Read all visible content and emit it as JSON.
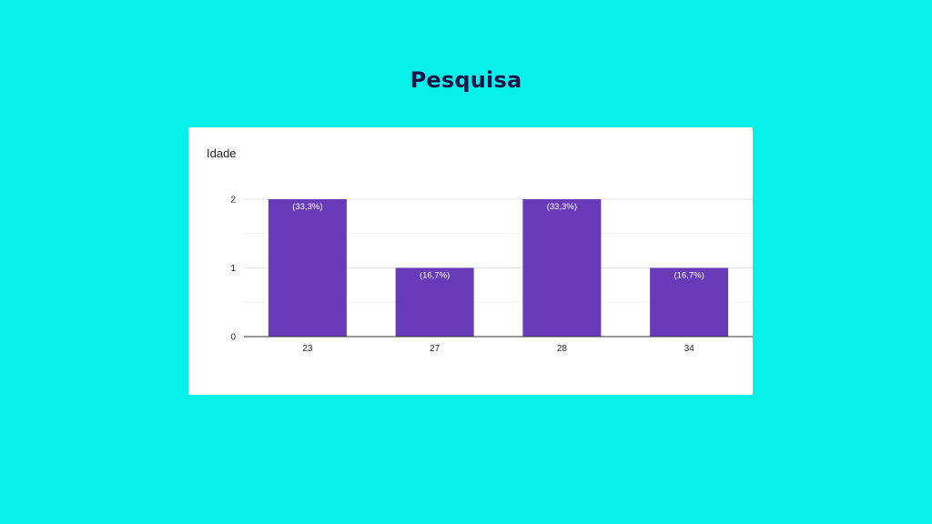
{
  "slide": {
    "title": "Pesquisa"
  },
  "colors": {
    "background": "#07f0ea",
    "card": "#ffffff",
    "bar": "#673ab7",
    "title": "#1a1446"
  },
  "chart_data": {
    "type": "bar",
    "title": "Idade",
    "categories": [
      "23",
      "27",
      "28",
      "34"
    ],
    "values": [
      2,
      1,
      2,
      1
    ],
    "data_labels": [
      "(33,3%)",
      "(16,7%)",
      "(33,3%)",
      "(16,7%)"
    ],
    "yticks": [
      "0",
      "1",
      "2"
    ],
    "ylim": [
      0,
      2
    ],
    "xlabel": "",
    "ylabel": "",
    "grid": true,
    "legend": "none"
  }
}
